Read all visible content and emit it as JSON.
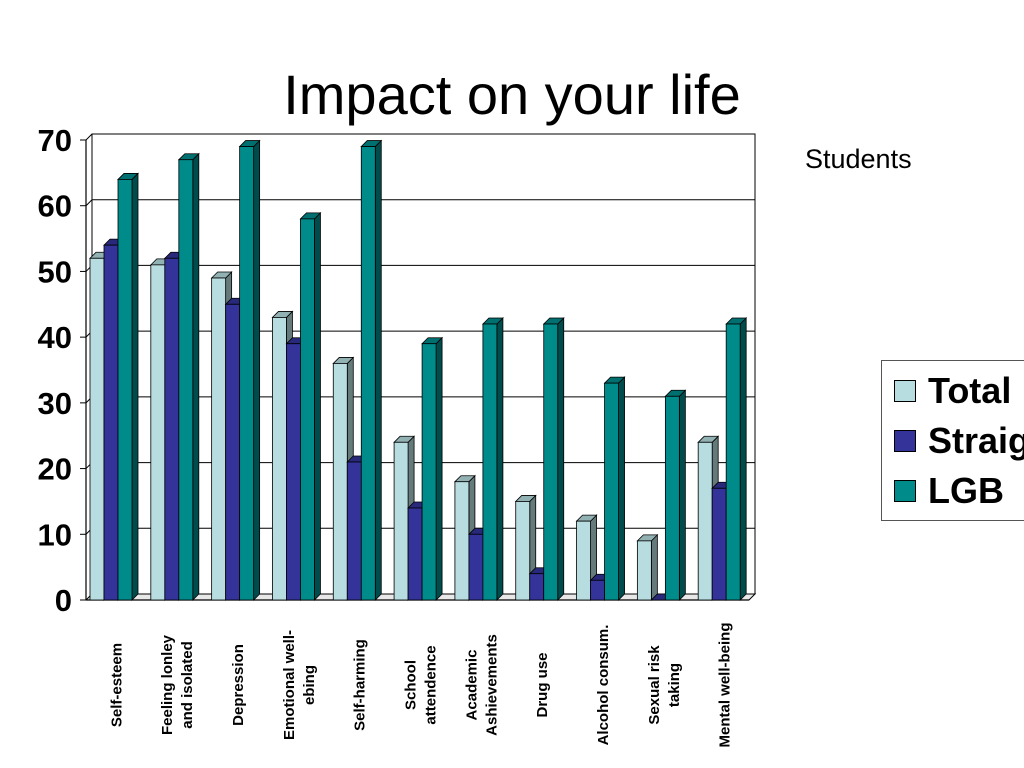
{
  "chart_data": {
    "type": "bar",
    "title": "Impact on your life",
    "subtitle": "Students",
    "categories": [
      [
        "Self-esteem"
      ],
      [
        "Feeling lonley",
        "and isolated"
      ],
      [
        "Depression"
      ],
      [
        "Emotional well-",
        "ebing"
      ],
      [
        "Self-harming"
      ],
      [
        "School",
        "attendence"
      ],
      [
        "Academic",
        "Ashievements"
      ],
      [
        "Drug use"
      ],
      [
        "Alcohol consum."
      ],
      [
        "Sexual risk",
        "taking"
      ],
      [
        "Mental well-being"
      ]
    ],
    "series": [
      {
        "name": "Total",
        "color": "#b7dde0",
        "values": [
          52,
          51,
          49,
          43,
          36,
          24,
          18,
          15,
          12,
          9,
          24
        ]
      },
      {
        "name": "Straight",
        "color": "#33339a",
        "values": [
          54,
          52,
          45,
          39,
          21,
          14,
          10,
          4,
          3,
          0,
          17
        ]
      },
      {
        "name": "LGB",
        "color": "#008b8b",
        "values": [
          64,
          67,
          69,
          58,
          69,
          39,
          42,
          42,
          33,
          31,
          42
        ]
      }
    ],
    "yticks": [
      0,
      10,
      20,
      30,
      40,
      50,
      60,
      70
    ],
    "ylim": [
      0,
      70
    ],
    "grid": true,
    "legend": "right",
    "style": "3d-clustered-column"
  }
}
